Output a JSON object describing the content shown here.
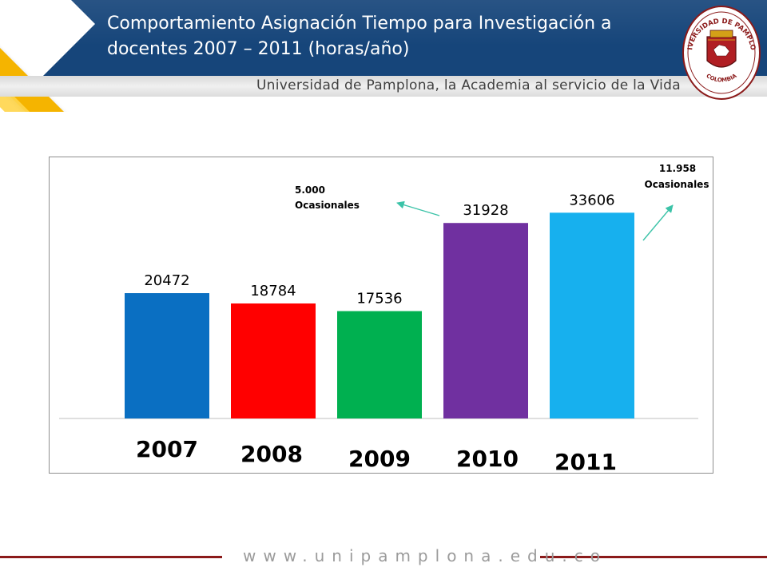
{
  "header": {
    "title": "Comportamiento Asignación Tiempo para Investigación a docentes 2007 – 2011 (horas/año)",
    "tagline": "Universidad de Pamplona, la Academia al servicio de la Vida"
  },
  "seal": {
    "top_text": "UNIVERSIDAD DE PAMPLONA",
    "bottom_text": "COLOMBIA"
  },
  "chart_data": {
    "type": "bar",
    "title": "",
    "xlabel": "",
    "ylabel": "",
    "categories": [
      "2007",
      "2008",
      "2009",
      "2010",
      "2011"
    ],
    "values": [
      20472,
      18784,
      17536,
      31928,
      33606
    ],
    "value_labels": [
      "20472",
      "18784",
      "17536",
      "31928",
      "33606"
    ],
    "colors": [
      "#0a6fc2",
      "#ff0000",
      "#00b050",
      "#7030a0",
      "#17b0ee"
    ],
    "ylim": [
      0,
      36000
    ],
    "grid": false,
    "legend": "none",
    "annotations": [
      {
        "id": "ann-2010",
        "line1": "5.000",
        "line2": "Ocasionales",
        "arrow_color": "#3cc3a8"
      },
      {
        "id": "ann-2011",
        "line1": "11.958",
        "line2": "Ocasionales",
        "arrow_color": "#3cc3a8"
      }
    ]
  },
  "footer": {
    "url": "www.unipamplona.edu.co",
    "line_color": "#8b1a1a"
  }
}
